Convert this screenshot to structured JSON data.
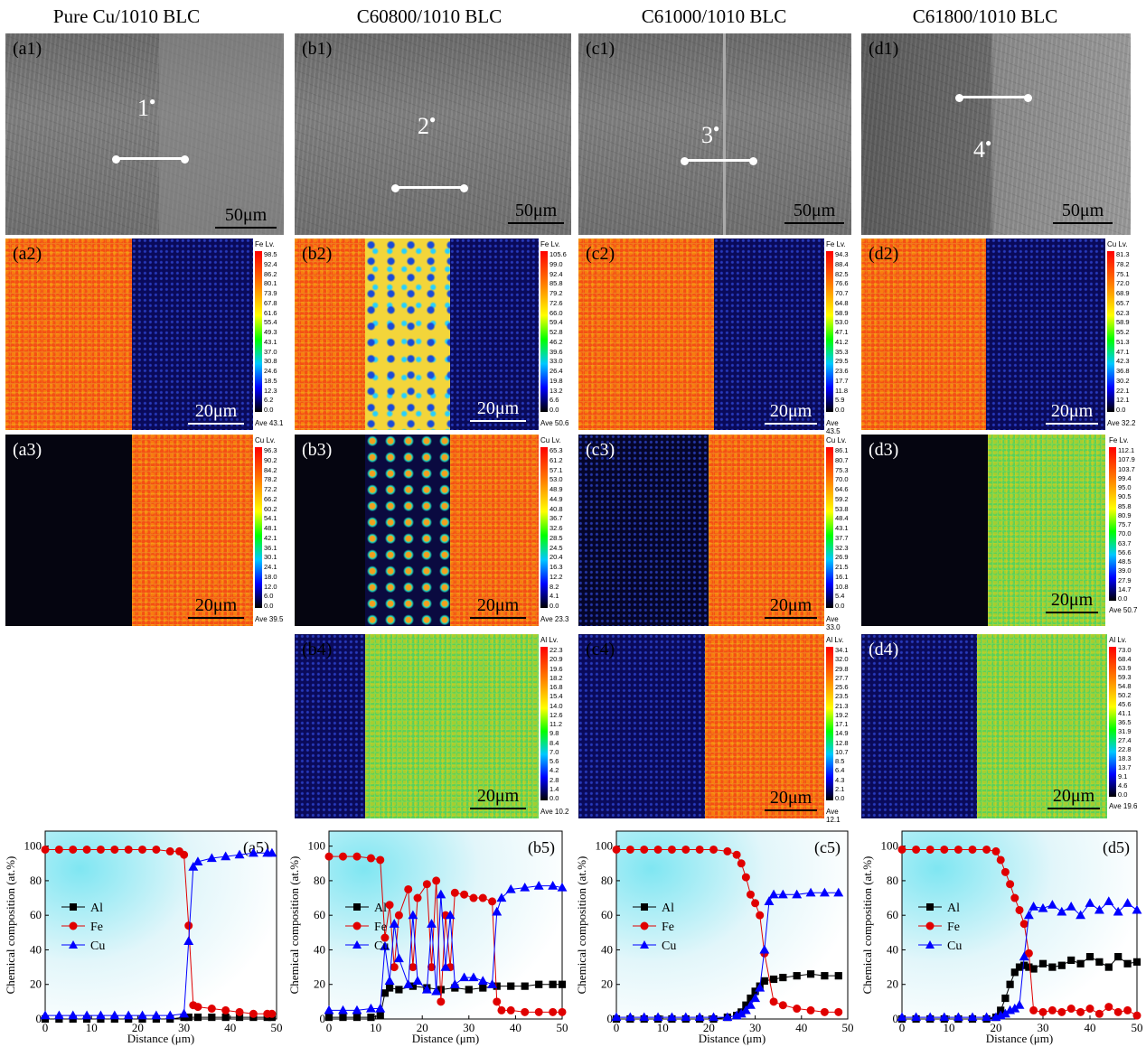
{
  "columns": [
    {
      "title": "Pure Cu/1010 BLC"
    },
    {
      "title": "C60800/1010 BLC"
    },
    {
      "title": "C61000/1010 BLC"
    },
    {
      "title": "C61800/1010 BLC"
    }
  ],
  "sem": [
    {
      "label": "(a1)",
      "point": "1",
      "scale": "50μm"
    },
    {
      "label": "(b1)",
      "point": "2",
      "scale": "50μm"
    },
    {
      "label": "(c1)",
      "point": "3",
      "scale": "50μm"
    },
    {
      "label": "(d1)",
      "point": "4",
      "scale": "50μm"
    }
  ],
  "maps": [
    {
      "label": "(a2)",
      "scale": "20μm",
      "cb_title": "Fe Lv.",
      "ticks": [
        "98.5",
        "92.4",
        "86.2",
        "80.1",
        "73.9",
        "67.8",
        "61.6",
        "55.4",
        "49.3",
        "43.1",
        "37.0",
        "30.8",
        "24.6",
        "18.5",
        "12.3",
        "6.2",
        "0.0"
      ],
      "ave": "Ave 43.1"
    },
    {
      "label": "(b2)",
      "scale": "20μm",
      "cb_title": "Fe Lv.",
      "ticks": [
        "105.6",
        "99.0",
        "92.4",
        "85.8",
        "79.2",
        "72.6",
        "66.0",
        "59.4",
        "52.8",
        "46.2",
        "39.6",
        "33.0",
        "26.4",
        "19.8",
        "13.2",
        "6.6",
        "0.0"
      ],
      "ave": "Ave 50.6"
    },
    {
      "label": "(c2)",
      "scale": "20μm",
      "cb_title": "Fe Lv.",
      "ticks": [
        "94.3",
        "88.4",
        "82.5",
        "76.6",
        "70.7",
        "64.8",
        "58.9",
        "53.0",
        "47.1",
        "41.2",
        "35.3",
        "29.5",
        "23.6",
        "17.7",
        "11.8",
        "5.9",
        "0.0"
      ],
      "ave": "Ave 43.5"
    },
    {
      "label": "(d2)",
      "scale": "20μm",
      "cb_title": "Cu Lv.",
      "ticks": [
        "81.3",
        "78.2",
        "75.1",
        "72.0",
        "68.9",
        "65.7",
        "62.3",
        "58.9",
        "55.2",
        "51.3",
        "47.1",
        "42.3",
        "36.8",
        "30.2",
        "22.1",
        "12.1",
        "0.0"
      ],
      "ave": "Ave 32.2"
    },
    {
      "label": "(a3)",
      "scale": "20μm",
      "cb_title": "Cu Lv.",
      "ticks": [
        "96.3",
        "90.2",
        "84.2",
        "78.2",
        "72.2",
        "66.2",
        "60.2",
        "54.1",
        "48.1",
        "42.1",
        "36.1",
        "30.1",
        "24.1",
        "18.0",
        "12.0",
        "6.0",
        "0.0"
      ],
      "ave": "Ave 39.5"
    },
    {
      "label": "(b3)",
      "scale": "20μm",
      "cb_title": "Cu Lv.",
      "ticks": [
        "65.3",
        "61.2",
        "57.1",
        "53.0",
        "48.9",
        "44.9",
        "40.8",
        "36.7",
        "32.6",
        "28.5",
        "24.5",
        "20.4",
        "16.3",
        "12.2",
        "8.2",
        "4.1",
        "0.0"
      ],
      "ave": "Ave 23.3"
    },
    {
      "label": "(c3)",
      "scale": "20μm",
      "cb_title": "Cu Lv.",
      "ticks": [
        "86.1",
        "80.7",
        "75.3",
        "70.0",
        "64.6",
        "59.2",
        "53.8",
        "48.4",
        "43.1",
        "37.7",
        "32.3",
        "26.9",
        "21.5",
        "16.1",
        "10.8",
        "5.4",
        "0.0"
      ],
      "ave": "Ave 33.0"
    },
    {
      "label": "(d3)",
      "scale": "20μm",
      "cb_title": "Fe Lv.",
      "ticks": [
        "112.1",
        "107.9",
        "103.7",
        "99.4",
        "95.0",
        "90.5",
        "85.8",
        "80.9",
        "75.7",
        "70.0",
        "63.7",
        "56.6",
        "48.5",
        "39.0",
        "27.9",
        "14.7",
        "0.0"
      ],
      "ave": "Ave 50.7"
    },
    {
      "label": "(b4)",
      "scale": "20μm",
      "cb_title": "Al Lv.",
      "ticks": [
        "22.3",
        "20.9",
        "19.6",
        "18.2",
        "16.8",
        "15.4",
        "14.0",
        "12.6",
        "11.2",
        "9.8",
        "8.4",
        "7.0",
        "5.6",
        "4.2",
        "2.8",
        "1.4",
        "0.0"
      ],
      "ave": "Ave 10.2"
    },
    {
      "label": "(c4)",
      "scale": "20μm",
      "cb_title": "Al Lv.",
      "ticks": [
        "34.1",
        "32.0",
        "29.8",
        "27.7",
        "25.6",
        "23.5",
        "21.3",
        "19.2",
        "17.1",
        "14.9",
        "12.8",
        "10.7",
        "8.5",
        "6.4",
        "4.3",
        "2.1",
        "0.0"
      ],
      "ave": "Ave 12.1"
    },
    {
      "label": "(d4)",
      "scale": "20μm",
      "cb_title": "Al Lv.",
      "ticks": [
        "73.0",
        "68.4",
        "63.9",
        "59.3",
        "54.8",
        "50.2",
        "45.6",
        "41.1",
        "36.5",
        "31.9",
        "27.4",
        "22.8",
        "18.3",
        "13.7",
        "9.1",
        "4.6",
        "0.0"
      ],
      "ave": "Ave 19.6"
    }
  ],
  "chart_data": [
    {
      "type": "line",
      "label": "(a5)",
      "xlabel": "Distance (μm)",
      "ylabel": "Chemical composition (at.%)",
      "xlim": [
        0,
        50
      ],
      "ylim": [
        0,
        100
      ],
      "xticks": [
        0,
        10,
        20,
        30,
        40,
        50
      ],
      "yticks": [
        0,
        20,
        40,
        60,
        80,
        100
      ],
      "series": [
        {
          "name": "Al",
          "color": "#000000",
          "marker": "square",
          "x": [
            0,
            3,
            6,
            9,
            12,
            15,
            18,
            21,
            24,
            27,
            30,
            31,
            33,
            36,
            39,
            42,
            45,
            48,
            49
          ],
          "y": [
            0,
            0,
            0,
            0,
            0,
            0,
            0,
            0,
            0,
            0,
            1,
            1,
            1,
            1,
            1,
            1,
            1,
            1,
            1
          ]
        },
        {
          "name": "Fe",
          "color": "#e00000",
          "marker": "circle",
          "x": [
            0,
            3,
            6,
            9,
            12,
            15,
            18,
            21,
            24,
            27,
            29,
            30,
            31,
            32,
            33,
            36,
            39,
            42,
            45,
            48,
            49
          ],
          "y": [
            98,
            98,
            98,
            98,
            98,
            98,
            98,
            98,
            98,
            97,
            97,
            95,
            54,
            8,
            7,
            6,
            5,
            4,
            3,
            3,
            3
          ]
        },
        {
          "name": "Cu",
          "color": "#0000ff",
          "marker": "triangle",
          "x": [
            0,
            3,
            6,
            9,
            12,
            15,
            18,
            21,
            24,
            27,
            30,
            31,
            32,
            33,
            36,
            39,
            42,
            45,
            48,
            49
          ],
          "y": [
            2,
            2,
            2,
            2,
            2,
            2,
            2,
            2,
            2,
            2,
            3,
            45,
            88,
            91,
            93,
            94,
            95,
            96,
            96,
            96
          ]
        }
      ]
    },
    {
      "type": "line",
      "label": "(b5)",
      "xlabel": "Distance (μm)",
      "ylabel": "Chemical composition (at.%)",
      "xlim": [
        0,
        50
      ],
      "ylim": [
        0,
        100
      ],
      "xticks": [
        0,
        10,
        20,
        30,
        40,
        50
      ],
      "yticks": [
        0,
        20,
        40,
        60,
        80,
        100
      ],
      "series": [
        {
          "name": "Al",
          "color": "#000000",
          "marker": "square",
          "x": [
            0,
            3,
            6,
            9,
            11,
            12,
            13,
            15,
            18,
            21,
            24,
            27,
            30,
            33,
            36,
            39,
            42,
            45,
            48,
            50
          ],
          "y": [
            1,
            1,
            1,
            1,
            2,
            15,
            18,
            17,
            19,
            18,
            17,
            18,
            17,
            18,
            19,
            19,
            19,
            20,
            20,
            20
          ]
        },
        {
          "name": "Fe",
          "color": "#e00000",
          "marker": "circle",
          "x": [
            0,
            3,
            6,
            9,
            11,
            12,
            13,
            14,
            15,
            17,
            18,
            19,
            21,
            22,
            23,
            24,
            25,
            26,
            27,
            29,
            31,
            33,
            35,
            36,
            37,
            39,
            42,
            45,
            48,
            50
          ],
          "y": [
            94,
            94,
            94,
            93,
            92,
            47,
            66,
            30,
            60,
            75,
            30,
            70,
            78,
            30,
            80,
            10,
            60,
            30,
            73,
            72,
            70,
            70,
            68,
            10,
            5,
            5,
            4,
            4,
            4,
            4
          ]
        },
        {
          "name": "Cu",
          "color": "#0000ff",
          "marker": "triangle",
          "x": [
            0,
            3,
            6,
            9,
            11,
            12,
            13,
            14,
            15,
            17,
            18,
            19,
            21,
            22,
            23,
            24,
            25,
            26,
            27,
            29,
            31,
            33,
            35,
            36,
            37,
            39,
            42,
            45,
            48,
            50
          ],
          "y": [
            5,
            5,
            5,
            6,
            6,
            42,
            22,
            55,
            35,
            20,
            60,
            22,
            17,
            55,
            16,
            72,
            30,
            60,
            20,
            24,
            24,
            22,
            20,
            62,
            70,
            75,
            76,
            77,
            77,
            76
          ]
        }
      ]
    },
    {
      "type": "line",
      "label": "(c5)",
      "xlabel": "Distance (μm)",
      "ylabel": "Chemical composition (at.%)",
      "xlim": [
        0,
        50
      ],
      "ylim": [
        0,
        100
      ],
      "xticks": [
        0,
        10,
        20,
        30,
        40,
        50
      ],
      "yticks": [
        0,
        20,
        40,
        60,
        80,
        100
      ],
      "series": [
        {
          "name": "Al",
          "color": "#000000",
          "marker": "square",
          "x": [
            0,
            3,
            6,
            9,
            12,
            15,
            18,
            21,
            24,
            26,
            27,
            28,
            29,
            30,
            31,
            32,
            34,
            36,
            39,
            42,
            45,
            48
          ],
          "y": [
            0,
            0,
            0,
            0,
            0,
            0,
            0,
            0,
            1,
            2,
            4,
            8,
            12,
            16,
            19,
            22,
            23,
            24,
            25,
            26,
            25,
            25
          ]
        },
        {
          "name": "Fe",
          "color": "#e00000",
          "marker": "circle",
          "x": [
            0,
            3,
            6,
            9,
            12,
            15,
            18,
            21,
            24,
            26,
            27,
            28,
            29,
            30,
            31,
            32,
            34,
            36,
            39,
            42,
            45,
            48
          ],
          "y": [
            98,
            98,
            98,
            98,
            98,
            98,
            98,
            98,
            97,
            95,
            90,
            82,
            72,
            67,
            60,
            38,
            10,
            8,
            6,
            5,
            4,
            4
          ]
        },
        {
          "name": "Cu",
          "color": "#0000ff",
          "marker": "triangle",
          "x": [
            0,
            3,
            6,
            9,
            12,
            15,
            18,
            21,
            24,
            26,
            27,
            28,
            29,
            30,
            31,
            32,
            33,
            34,
            36,
            39,
            42,
            45,
            48
          ],
          "y": [
            1,
            1,
            1,
            1,
            1,
            1,
            1,
            1,
            1,
            2,
            3,
            5,
            8,
            12,
            18,
            40,
            68,
            72,
            72,
            72,
            73,
            73,
            73
          ]
        }
      ]
    },
    {
      "type": "line",
      "label": "(d5)",
      "xlabel": "Distance (μm)",
      "ylabel": "Chemical composition (at.%)",
      "xlim": [
        0,
        50
      ],
      "ylim": [
        0,
        100
      ],
      "xticks": [
        0,
        10,
        20,
        30,
        40,
        50
      ],
      "yticks": [
        0,
        20,
        40,
        60,
        80,
        100
      ],
      "series": [
        {
          "name": "Al",
          "color": "#000000",
          "marker": "square",
          "x": [
            0,
            3,
            6,
            9,
            12,
            15,
            18,
            20,
            21,
            22,
            23,
            24,
            25,
            26,
            27,
            28,
            30,
            32,
            34,
            36,
            38,
            40,
            42,
            44,
            46,
            48,
            50
          ],
          "y": [
            0,
            0,
            0,
            0,
            0,
            0,
            0,
            1,
            5,
            12,
            20,
            27,
            30,
            31,
            30,
            29,
            32,
            30,
            31,
            34,
            32,
            36,
            33,
            30,
            36,
            32,
            33
          ]
        },
        {
          "name": "Fe",
          "color": "#e00000",
          "marker": "circle",
          "x": [
            0,
            3,
            6,
            9,
            12,
            15,
            18,
            20,
            21,
            22,
            23,
            24,
            25,
            26,
            27,
            28,
            30,
            32,
            34,
            36,
            38,
            40,
            42,
            44,
            46,
            48,
            50
          ],
          "y": [
            98,
            98,
            98,
            98,
            98,
            98,
            98,
            97,
            92,
            85,
            78,
            70,
            63,
            55,
            38,
            5,
            4,
            5,
            4,
            6,
            4,
            6,
            3,
            7,
            4,
            5,
            2
          ]
        },
        {
          "name": "Cu",
          "color": "#0000ff",
          "marker": "triangle",
          "x": [
            0,
            3,
            6,
            9,
            12,
            15,
            18,
            20,
            21,
            22,
            23,
            24,
            25,
            26,
            27,
            28,
            30,
            32,
            34,
            36,
            38,
            40,
            42,
            44,
            46,
            48,
            50
          ],
          "y": [
            1,
            1,
            1,
            1,
            1,
            1,
            1,
            1,
            2,
            3,
            5,
            6,
            8,
            36,
            60,
            65,
            64,
            66,
            62,
            65,
            60,
            67,
            63,
            68,
            62,
            67,
            63
          ]
        }
      ]
    }
  ]
}
